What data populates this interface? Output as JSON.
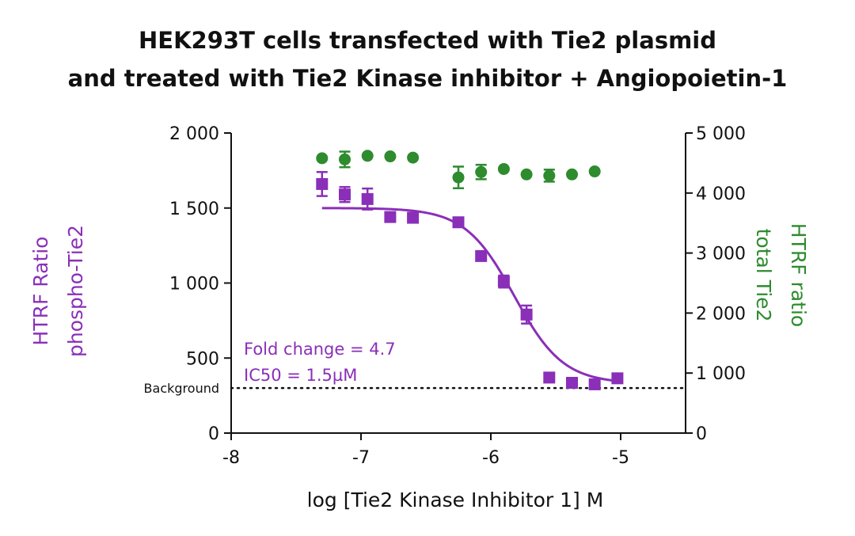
{
  "title_line1": "HEK293T cells transfected with Tie2 plasmid",
  "title_line2": "and treated with Tie2 Kinase inhibitor + Angiopoietin-1",
  "colors": {
    "purple": "#8a2fb8",
    "green": "#2e8b2e",
    "axis": "#111111"
  },
  "chart_data": {
    "type": "scatter",
    "xlabel": "log [Tie2 Kinase Inhibitor 1] M",
    "ylabel_left": [
      "HTRF Ratio",
      "phospho-Tie2"
    ],
    "ylabel_right": [
      "HTRF ratio",
      "total Tie2"
    ],
    "xlim": [
      -8,
      -4.5
    ],
    "ylim_left": [
      0,
      2000
    ],
    "ylim_right": [
      0,
      5000
    ],
    "x_ticks": [
      -8,
      -7,
      -6,
      -5
    ],
    "x_tick_labels": [
      "-8",
      "-7",
      "-6",
      "-5"
    ],
    "y_left_ticks": [
      0,
      500,
      1000,
      1500,
      2000
    ],
    "y_left_tick_labels": [
      "0",
      "500",
      "1 000",
      "1 500",
      "2 000"
    ],
    "y_right_ticks": [
      0,
      1000,
      2000,
      3000,
      4000,
      5000
    ],
    "y_right_tick_labels": [
      "0",
      "1 000",
      "2 000",
      "3 000",
      "4 000",
      "5 000"
    ],
    "background": {
      "label": "Background",
      "y": 300
    },
    "annotations": [
      "Fold change = 4.7",
      "IC50 = 1.5µM"
    ],
    "series": [
      {
        "axis": "left",
        "marker": "square",
        "color": "purple",
        "x": [
          -7.3,
          -7.125,
          -6.95,
          -6.775,
          -6.6,
          -6.25,
          -6.075,
          -5.9,
          -5.725,
          -5.55,
          -5.375,
          -5.2,
          -5.025
        ],
        "y": [
          1660,
          1590,
          1560,
          1440,
          1435,
          1405,
          1180,
          1010,
          790,
          370,
          335,
          325,
          365
        ],
        "err": [
          80,
          50,
          70,
          0,
          0,
          25,
          0,
          40,
          60,
          0,
          0,
          0,
          0
        ]
      },
      {
        "axis": "right",
        "marker": "circle",
        "color": "green",
        "x": [
          -7.3,
          -7.125,
          -6.95,
          -6.775,
          -6.6,
          -6.25,
          -6.075,
          -5.9,
          -5.725,
          -5.55,
          -5.375,
          -5.2
        ],
        "y": [
          4580,
          4560,
          4620,
          4610,
          4590,
          4260,
          4350,
          4400,
          4310,
          4290,
          4310,
          4360
        ],
        "err": [
          0,
          130,
          0,
          0,
          0,
          180,
          120,
          0,
          0,
          100,
          0,
          0
        ]
      }
    ],
    "fit": {
      "series": "phospho",
      "top": 1500,
      "bottom": 330,
      "logIC50": -5.82,
      "hill": 2.3,
      "x_range": [
        -7.3,
        -5.0
      ]
    }
  }
}
